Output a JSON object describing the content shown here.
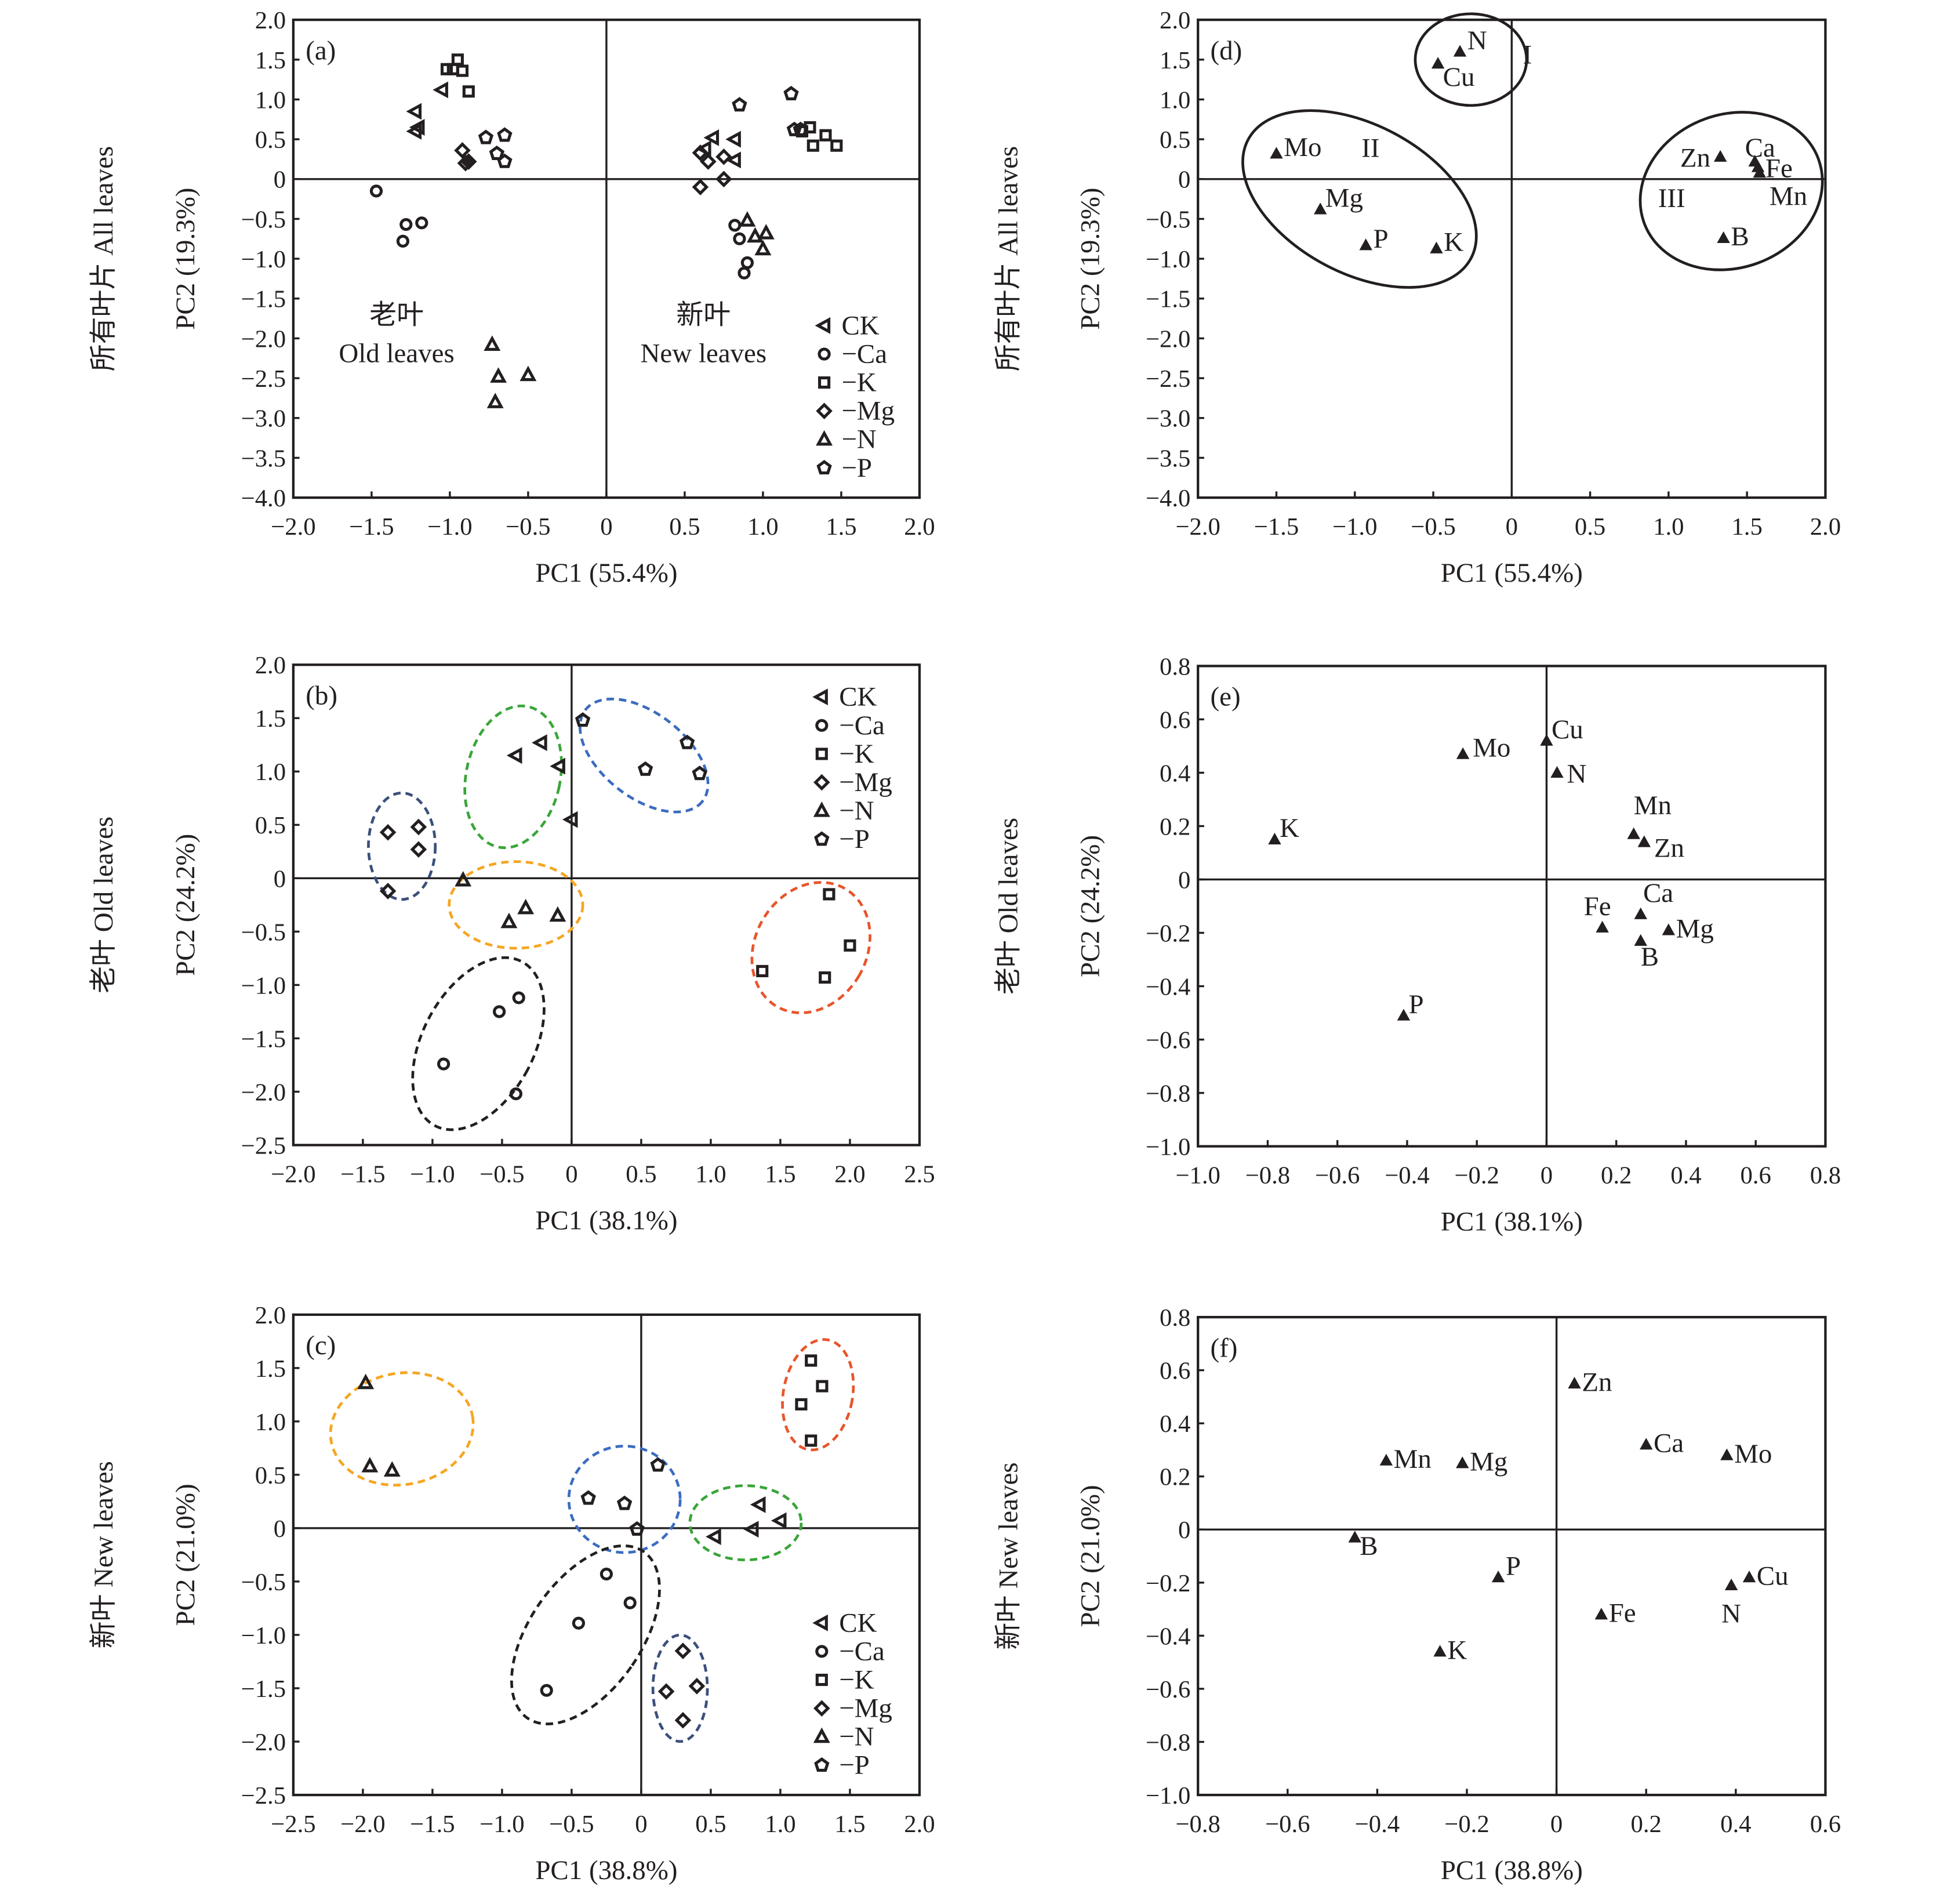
{
  "chart_data": [
    {
      "panel": "(a)",
      "type": "scatter",
      "xlabel": "PC1 (55.4%)",
      "ylabel_cn": "所有叶片 All leaves",
      "ylabel_en": "PC2 (19.3%)",
      "xlim": [
        -2.0,
        2.0
      ],
      "ylim": [
        -4.0,
        2.0
      ],
      "xticks": [
        "−2.0",
        "−1.5",
        "−1.0",
        "−0.5",
        "0",
        "0.5",
        "1.0",
        "1.5",
        "2.0"
      ],
      "yticks": [
        "2.0",
        "1.5",
        "1.0",
        "0.5",
        "0",
        "−0.5",
        "−1.0",
        "−1.5",
        "−2.0",
        "−2.5",
        "−3.0",
        "−3.5",
        "−4.0"
      ],
      "annotations": [
        {
          "text": "老叶",
          "x": -1.34,
          "y": -1.82
        },
        {
          "text": "Old leaves",
          "x": -1.34,
          "y": -2.3
        },
        {
          "text": "新叶",
          "x": 0.62,
          "y": -1.82
        },
        {
          "text": "New leaves",
          "x": 0.62,
          "y": -2.3
        }
      ],
      "legend": {
        "position": "bottom-right",
        "entries": [
          {
            "label": "CK",
            "marker": "left-triangle"
          },
          {
            "label": "−Ca",
            "marker": "circle"
          },
          {
            "label": "−K",
            "marker": "square"
          },
          {
            "label": "−Mg",
            "marker": "diamond"
          },
          {
            "label": "−N",
            "marker": "triangle"
          },
          {
            "label": "−P",
            "marker": "pentagon"
          }
        ]
      },
      "series": [
        {
          "marker": "left-triangle",
          "points": [
            [
              -1.05,
              1.12
            ],
            [
              -1.22,
              0.85
            ],
            [
              -1.2,
              0.65
            ],
            [
              -1.22,
              0.6
            ],
            [
              0.68,
              0.52
            ],
            [
              0.63,
              0.38
            ],
            [
              0.82,
              0.5
            ],
            [
              0.82,
              0.24
            ]
          ]
        },
        {
          "marker": "circle",
          "points": [
            [
              -1.47,
              -0.15
            ],
            [
              -1.28,
              -0.57
            ],
            [
              -1.18,
              -0.55
            ],
            [
              -1.3,
              -0.78
            ],
            [
              0.82,
              -0.58
            ],
            [
              0.85,
              -0.75
            ],
            [
              0.9,
              -1.05
            ],
            [
              0.88,
              -1.18
            ]
          ]
        },
        {
          "marker": "square",
          "points": [
            [
              -0.95,
              1.5
            ],
            [
              -0.98,
              1.38
            ],
            [
              -0.92,
              1.36
            ],
            [
              -1.02,
              1.38
            ],
            [
              -0.88,
              1.1
            ],
            [
              1.25,
              0.6
            ],
            [
              1.3,
              0.65
            ],
            [
              1.4,
              0.55
            ],
            [
              1.32,
              0.42
            ],
            [
              1.47,
              0.42
            ]
          ]
        },
        {
          "marker": "diamond",
          "points": [
            [
              -0.92,
              0.36
            ],
            [
              -0.9,
              0.2
            ],
            [
              -0.88,
              0.22
            ],
            [
              0.6,
              0.33
            ],
            [
              0.65,
              0.22
            ],
            [
              0.75,
              0.28
            ],
            [
              0.6,
              -0.1
            ],
            [
              0.75,
              0
            ]
          ]
        },
        {
          "marker": "triangle",
          "points": [
            [
              -0.73,
              -2.08
            ],
            [
              -0.69,
              -2.48
            ],
            [
              -0.5,
              -2.46
            ],
            [
              -0.71,
              -2.8
            ],
            [
              0.9,
              -0.52
            ],
            [
              0.95,
              -0.72
            ],
            [
              1.02,
              -0.68
            ],
            [
              1.0,
              -0.88
            ]
          ]
        },
        {
          "marker": "pentagon",
          "points": [
            [
              -0.77,
              0.52
            ],
            [
              -0.65,
              0.55
            ],
            [
              -0.7,
              0.32
            ],
            [
              -0.65,
              0.22
            ],
            [
              0.85,
              0.93
            ],
            [
              1.18,
              1.07
            ],
            [
              1.2,
              0.62
            ],
            [
              1.24,
              0.62
            ]
          ]
        }
      ]
    },
    {
      "panel": "(b)",
      "type": "scatter",
      "xlabel": "PC1 (38.1%)",
      "ylabel_cn": "老叶 Old leaves",
      "ylabel_en": "PC2 (24.2%)",
      "xlim": [
        -2.0,
        2.5
      ],
      "ylim": [
        -2.5,
        2.0
      ],
      "xticks": [
        "−2.0",
        "−1.5",
        "−1.0",
        "−0.5",
        "0",
        "0.5",
        "1.0",
        "1.5",
        "2.0",
        "2.5"
      ],
      "yticks": [
        "2.0",
        "1.5",
        "1.0",
        "0.5",
        "0",
        "−0.5",
        "−1.0",
        "−1.5",
        "−2.0",
        "−2.5"
      ],
      "legend": {
        "position": "top-right",
        "entries": [
          {
            "label": "CK",
            "marker": "left-triangle"
          },
          {
            "label": "−Ca",
            "marker": "circle"
          },
          {
            "label": "−K",
            "marker": "square"
          },
          {
            "label": "−Mg",
            "marker": "diamond"
          },
          {
            "label": "−N",
            "marker": "triangle"
          },
          {
            "label": "−P",
            "marker": "pentagon"
          }
        ]
      },
      "series": [
        {
          "marker": "left-triangle",
          "points": [
            [
              -0.4,
              1.15
            ],
            [
              -0.22,
              1.27
            ],
            [
              -0.09,
              1.05
            ],
            [
              0.0,
              0.55
            ]
          ]
        },
        {
          "marker": "circle",
          "points": [
            [
              -0.92,
              -1.74
            ],
            [
              -0.52,
              -1.25
            ],
            [
              -0.38,
              -1.12
            ],
            [
              -0.4,
              -2.02
            ]
          ]
        },
        {
          "marker": "square",
          "points": [
            [
              1.85,
              -0.15
            ],
            [
              2.0,
              -0.63
            ],
            [
              1.37,
              -0.87
            ],
            [
              1.82,
              -0.93
            ]
          ]
        },
        {
          "marker": "diamond",
          "points": [
            [
              -1.32,
              0.43
            ],
            [
              -1.1,
              0.48
            ],
            [
              -1.1,
              0.27
            ],
            [
              -1.32,
              -0.12
            ]
          ]
        },
        {
          "marker": "triangle",
          "points": [
            [
              -0.78,
              -0.02
            ],
            [
              -0.45,
              -0.41
            ],
            [
              -0.33,
              -0.28
            ],
            [
              -0.1,
              -0.35
            ]
          ]
        },
        {
          "marker": "pentagon",
          "points": [
            [
              0.08,
              1.48
            ],
            [
              0.53,
              1.02
            ],
            [
              0.83,
              1.27
            ],
            [
              0.92,
              0.98
            ]
          ]
        }
      ]
    },
    {
      "panel": "(c)",
      "type": "scatter",
      "xlabel": "PC1 (38.8%)",
      "ylabel_cn": "新叶 New leaves",
      "ylabel_en": "PC2 (21.0%)",
      "xlim": [
        -2.5,
        2.0
      ],
      "ylim": [
        -2.5,
        2.0
      ],
      "xticks": [
        "−2.5",
        "−2.0",
        "−1.5",
        "−1.0",
        "−0.5",
        "0",
        "0.5",
        "1.0",
        "1.5",
        "2.0"
      ],
      "yticks": [
        "2.0",
        "1.5",
        "1.0",
        "0.5",
        "0",
        "−0.5",
        "−1.0",
        "−1.5",
        "−2.0",
        "−2.5"
      ],
      "legend": {
        "position": "bottom-right",
        "entries": [
          {
            "label": "CK",
            "marker": "left-triangle"
          },
          {
            "label": "−Ca",
            "marker": "circle"
          },
          {
            "label": "−K",
            "marker": "square"
          },
          {
            "label": "−Mg",
            "marker": "diamond"
          },
          {
            "label": "−N",
            "marker": "triangle"
          },
          {
            "label": "−P",
            "marker": "pentagon"
          }
        ]
      },
      "series": [
        {
          "marker": "left-triangle",
          "points": [
            [
              0.53,
              -0.08
            ],
            [
              0.8,
              -0.01
            ],
            [
              0.85,
              0.22
            ],
            [
              1.0,
              0.07
            ]
          ]
        },
        {
          "marker": "circle",
          "points": [
            [
              -0.25,
              -0.43
            ],
            [
              -0.45,
              -0.89
            ],
            [
              -0.08,
              -0.7
            ],
            [
              -0.68,
              -1.52
            ]
          ]
        },
        {
          "marker": "square",
          "points": [
            [
              1.22,
              1.57
            ],
            [
              1.3,
              1.33
            ],
            [
              1.15,
              1.16
            ],
            [
              1.22,
              0.82
            ]
          ]
        },
        {
          "marker": "diamond",
          "points": [
            [
              0.3,
              -1.15
            ],
            [
              0.4,
              -1.48
            ],
            [
              0.18,
              -1.53
            ],
            [
              0.3,
              -1.8
            ]
          ]
        },
        {
          "marker": "triangle",
          "points": [
            [
              -1.98,
              1.36
            ],
            [
              -1.95,
              0.58
            ],
            [
              -1.79,
              0.54
            ]
          ]
        },
        {
          "marker": "pentagon",
          "points": [
            [
              -0.38,
              0.28
            ],
            [
              -0.12,
              0.23
            ],
            [
              0.12,
              0.59
            ],
            [
              -0.03,
              -0.01
            ]
          ]
        }
      ]
    },
    {
      "panel": "(d)",
      "type": "scatter",
      "xlabel": "PC1 (55.4%)",
      "ylabel_cn": "所有叶片 All leaves",
      "ylabel_en": "PC2 (19.3%)",
      "xlim": [
        -2.0,
        2.0
      ],
      "ylim": [
        -4.0,
        2.0
      ],
      "xticks": [
        "−2.0",
        "−1.5",
        "−1.0",
        "−0.5",
        "0",
        "0.5",
        "1.0",
        "1.5",
        "2.0"
      ],
      "yticks": [
        "2.0",
        "1.5",
        "1.0",
        "0.5",
        "0",
        "−0.5",
        "−1.0",
        "−1.5",
        "−2.0",
        "−2.5",
        "−3.0",
        "−3.5",
        "−4.0"
      ],
      "group_labels": [
        {
          "text": "I",
          "x": 0.1,
          "y": 1.45
        },
        {
          "text": "II",
          "x": -0.9,
          "y": 0.28
        },
        {
          "text": "III",
          "x": 1.02,
          "y": -0.35
        }
      ],
      "points": [
        {
          "label": "N",
          "x": -0.33,
          "y": 1.6
        },
        {
          "label": "Cu",
          "x": -0.47,
          "y": 1.45
        },
        {
          "label": "Mo",
          "x": -1.5,
          "y": 0.32
        },
        {
          "label": "Mg",
          "x": -1.22,
          "y": -0.38
        },
        {
          "label": "P",
          "x": -0.93,
          "y": -0.83
        },
        {
          "label": "K",
          "x": -0.48,
          "y": -0.87
        },
        {
          "label": "Zn",
          "x": 1.33,
          "y": 0.28
        },
        {
          "label": "Ca",
          "x": 1.55,
          "y": 0.22
        },
        {
          "label": "Fe",
          "x": 1.57,
          "y": 0.15
        },
        {
          "label": "Mn",
          "x": 1.58,
          "y": 0.08
        },
        {
          "label": "B",
          "x": 1.35,
          "y": -0.74
        }
      ]
    },
    {
      "panel": "(e)",
      "type": "scatter",
      "xlabel": "PC1 (38.1%)",
      "ylabel_cn": "老叶 Old leaves",
      "ylabel_en": "PC2 (24.2%)",
      "xlim": [
        -1.0,
        0.8
      ],
      "ylim": [
        -1.0,
        0.8
      ],
      "xticks": [
        "−1.0",
        "−0.8",
        "−0.6",
        "−0.4",
        "−0.2",
        "0",
        "0.2",
        "0.4",
        "0.6",
        "0.8"
      ],
      "yticks": [
        "0.8",
        "0.6",
        "0.4",
        "0.2",
        "0",
        "−0.2",
        "−0.4",
        "−0.6",
        "−0.8",
        "−1.0"
      ],
      "points": [
        {
          "label": "Cu",
          "x": 0.0,
          "y": 0.52
        },
        {
          "label": "Mo",
          "x": -0.24,
          "y": 0.47
        },
        {
          "label": "N",
          "x": 0.03,
          "y": 0.4
        },
        {
          "label": "K",
          "x": -0.78,
          "y": 0.15
        },
        {
          "label": "Mn",
          "x": 0.25,
          "y": 0.17
        },
        {
          "label": "Zn",
          "x": 0.28,
          "y": 0.14
        },
        {
          "label": "Ca",
          "x": 0.27,
          "y": -0.13
        },
        {
          "label": "Fe",
          "x": 0.16,
          "y": -0.18
        },
        {
          "label": "Mg",
          "x": 0.35,
          "y": -0.19
        },
        {
          "label": "B",
          "x": 0.27,
          "y": -0.23
        },
        {
          "label": "P",
          "x": -0.41,
          "y": -0.51
        }
      ]
    },
    {
      "panel": "(f)",
      "type": "scatter",
      "xlabel": "PC1 (38.8%)",
      "ylabel_cn": "新叶 New leaves",
      "ylabel_en": "PC2 (21.0%)",
      "xlim": [
        -0.8,
        0.6
      ],
      "ylim": [
        -1.0,
        0.8
      ],
      "xticks": [
        "−0.8",
        "−0.6",
        "−0.4",
        "−0.2",
        "0",
        "0.2",
        "0.4",
        "0.6"
      ],
      "yticks": [
        "0.8",
        "0.6",
        "0.4",
        "0.2",
        "0",
        "−0.2",
        "−0.4",
        "−0.6",
        "−0.8",
        "−1.0"
      ],
      "points": [
        {
          "label": "Zn",
          "x": 0.04,
          "y": 0.55
        },
        {
          "label": "Ca",
          "x": 0.2,
          "y": 0.32
        },
        {
          "label": "Mo",
          "x": 0.38,
          "y": 0.28
        },
        {
          "label": "Mn",
          "x": -0.38,
          "y": 0.26
        },
        {
          "label": "Mg",
          "x": -0.21,
          "y": 0.25
        },
        {
          "label": "B",
          "x": -0.45,
          "y": -0.03
        },
        {
          "label": "P",
          "x": -0.13,
          "y": -0.18
        },
        {
          "label": "Cu",
          "x": 0.43,
          "y": -0.18
        },
        {
          "label": "N",
          "x": 0.39,
          "y": -0.21
        },
        {
          "label": "Fe",
          "x": 0.1,
          "y": -0.32
        },
        {
          "label": "K",
          "x": -0.26,
          "y": -0.46
        }
      ]
    }
  ],
  "colors": {
    "axis": "#231f20",
    "cluster_yellow": "#f5a623",
    "cluster_green": "#3aa53a",
    "cluster_blue": "#3b6cc0",
    "cluster_orange": "#e8552b",
    "cluster_black": "#231f20",
    "cluster_navy": "#3b4f7a"
  }
}
